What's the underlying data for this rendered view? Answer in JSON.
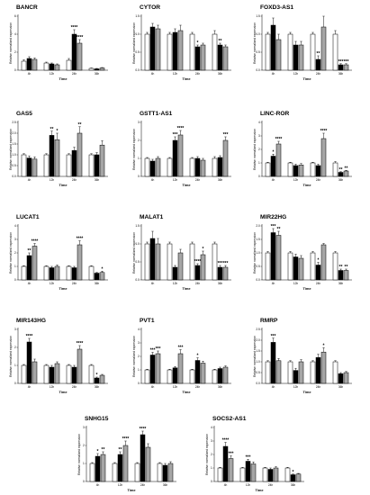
{
  "figure": {
    "groups": [
      "4h",
      "12h",
      "24h",
      "36h"
    ],
    "ylabel": "Relative normalized expression",
    "xlabel": "Time",
    "bar_colors": [
      "#ffffff",
      "#000000",
      "#a6a6a6"
    ]
  },
  "chart_data": [
    {
      "type": "bar",
      "title": "BANCR",
      "categories": [
        "4h",
        "12h",
        "24h",
        "36h"
      ],
      "ylim": [
        0,
        6
      ],
      "yticks": [
        0,
        2,
        4,
        6
      ],
      "series": [
        {
          "values": [
            1.0,
            0.8,
            1.1,
            0.2
          ]
        },
        {
          "values": [
            1.3,
            0.7,
            4.0,
            0.15
          ]
        },
        {
          "values": [
            1.2,
            0.6,
            3.0,
            0.25
          ]
        }
      ],
      "errors": [
        [
          0.15,
          0.1,
          0.2,
          0.05
        ],
        [
          0.2,
          0.1,
          0.5,
          0.05
        ],
        [
          0.15,
          0.1,
          0.4,
          0.05
        ]
      ],
      "annotations": [
        [
          "",
          "",
          "",
          ""
        ],
        [
          "",
          "",
          "****",
          ""
        ],
        [
          "",
          "",
          "****",
          ""
        ]
      ]
    },
    {
      "type": "bar",
      "title": "CYTOR",
      "categories": [
        "4h",
        "12h",
        "24h",
        "36h"
      ],
      "ylim": [
        0,
        1.5
      ],
      "yticks": [
        0.0,
        0.5,
        1.0,
        1.5
      ],
      "series": [
        {
          "values": [
            1.0,
            1.0,
            1.0,
            1.0
          ]
        },
        {
          "values": [
            1.2,
            1.05,
            0.65,
            0.7
          ]
        },
        {
          "values": [
            1.15,
            1.1,
            0.7,
            0.65
          ]
        }
      ],
      "errors": [
        [
          0.05,
          0.05,
          0.05,
          0.1
        ],
        [
          0.1,
          0.1,
          0.05,
          0.05
        ],
        [
          0.1,
          0.15,
          0.05,
          0.05
        ]
      ],
      "annotations": [
        [
          "",
          "",
          "",
          ""
        ],
        [
          "",
          "",
          "*",
          "**"
        ],
        [
          "",
          "",
          "",
          ""
        ]
      ]
    },
    {
      "type": "bar",
      "title": "FOXD3-AS1",
      "categories": [
        "4h",
        "12h",
        "24h",
        "36h"
      ],
      "ylim": [
        0,
        1.5
      ],
      "yticks": [
        0.0,
        0.5,
        1.0,
        1.5
      ],
      "series": [
        {
          "values": [
            1.0,
            1.0,
            1.0,
            1.0
          ]
        },
        {
          "values": [
            1.25,
            0.7,
            0.3,
            0.15
          ]
        },
        {
          "values": [
            0.85,
            0.7,
            1.2,
            0.15
          ]
        }
      ],
      "errors": [
        [
          0.05,
          0.05,
          0.05,
          0.1
        ],
        [
          0.2,
          0.1,
          0.1,
          0.03
        ],
        [
          0.15,
          0.1,
          0.3,
          0.03
        ]
      ],
      "annotations": [
        [
          "",
          "",
          "",
          ""
        ],
        [
          "",
          "",
          "**",
          "***"
        ],
        [
          "",
          "",
          "",
          "***"
        ]
      ]
    },
    {
      "type": "bar",
      "title": "GAS5",
      "categories": [
        "4h",
        "12h",
        "24h",
        "36h"
      ],
      "ylim": [
        0,
        2.5
      ],
      "yticks": [
        0.0,
        0.5,
        1.0,
        1.5,
        2.0,
        2.5
      ],
      "series": [
        {
          "values": [
            1.0,
            1.0,
            1.0,
            1.0
          ]
        },
        {
          "values": [
            0.85,
            1.9,
            1.2,
            1.0
          ]
        },
        {
          "values": [
            0.8,
            1.7,
            2.0,
            1.45
          ]
        }
      ],
      "errors": [
        [
          0.05,
          0.05,
          0.05,
          0.05
        ],
        [
          0.1,
          0.2,
          0.15,
          0.1
        ],
        [
          0.1,
          0.3,
          0.3,
          0.2
        ]
      ],
      "annotations": [
        [
          "",
          "",
          "",
          ""
        ],
        [
          "",
          "**",
          "",
          ""
        ],
        [
          "",
          "*",
          "**",
          ""
        ]
      ]
    },
    {
      "type": "bar",
      "title": "GSTT1-AS1",
      "categories": [
        "4h",
        "12h",
        "24h",
        "36h"
      ],
      "ylim": [
        0,
        3
      ],
      "yticks": [
        0,
        1,
        2,
        3
      ],
      "series": [
        {
          "values": [
            1.0,
            1.0,
            1.0,
            1.0
          ]
        },
        {
          "values": [
            0.85,
            2.0,
            1.0,
            1.05
          ]
        },
        {
          "values": [
            1.0,
            2.3,
            0.9,
            2.0
          ]
        }
      ],
      "errors": [
        [
          0.05,
          0.05,
          0.05,
          0.1
        ],
        [
          0.1,
          0.2,
          0.1,
          0.1
        ],
        [
          0.1,
          0.25,
          0.1,
          0.2
        ]
      ],
      "annotations": [
        [
          "",
          "",
          "",
          ""
        ],
        [
          "",
          "***",
          "",
          " "
        ],
        [
          "",
          "****",
          "",
          "***"
        ]
      ]
    },
    {
      "type": "bar",
      "title": "LINC-ROR",
      "categories": [
        "4h",
        "12h",
        "24h",
        "36h"
      ],
      "ylim": [
        0,
        4
      ],
      "yticks": [
        0,
        1,
        2,
        3,
        4
      ],
      "series": [
        {
          "values": [
            1.0,
            1.0,
            1.0,
            1.0
          ]
        },
        {
          "values": [
            1.5,
            0.8,
            0.8,
            0.3
          ]
        },
        {
          "values": [
            2.4,
            0.85,
            2.8,
            0.4
          ]
        }
      ],
      "errors": [
        [
          0.05,
          0.05,
          0.05,
          0.1
        ],
        [
          0.15,
          0.1,
          0.1,
          0.05
        ],
        [
          0.2,
          0.1,
          0.4,
          0.05
        ]
      ],
      "annotations": [
        [
          "",
          "",
          "",
          ""
        ],
        [
          "*",
          "",
          "",
          "**"
        ],
        [
          "****",
          "",
          "****",
          "**"
        ]
      ]
    },
    {
      "type": "bar",
      "title": "LUCAT1",
      "categories": [
        "4h",
        "12h",
        "24h",
        "36h"
      ],
      "ylim": [
        0,
        4
      ],
      "yticks": [
        0,
        1,
        2,
        3,
        4
      ],
      "series": [
        {
          "values": [
            1.0,
            1.0,
            1.0,
            1.0
          ]
        },
        {
          "values": [
            1.8,
            0.9,
            0.9,
            0.5
          ]
        },
        {
          "values": [
            2.5,
            1.0,
            2.6,
            0.55
          ]
        }
      ],
      "errors": [
        [
          0.05,
          0.05,
          0.05,
          0.05
        ],
        [
          0.2,
          0.1,
          0.1,
          0.05
        ],
        [
          0.2,
          0.1,
          0.3,
          0.1
        ]
      ],
      "annotations": [
        [
          "",
          "",
          "",
          ""
        ],
        [
          "**",
          "",
          "",
          ""
        ],
        [
          "****",
          "",
          "****",
          "*"
        ]
      ]
    },
    {
      "type": "bar",
      "title": "MALAT1",
      "categories": [
        "4h",
        "12h",
        "24h",
        "36h"
      ],
      "ylim": [
        0,
        1.5
      ],
      "yticks": [
        0.0,
        0.5,
        1.0,
        1.5
      ],
      "series": [
        {
          "values": [
            1.0,
            1.0,
            1.0,
            1.0
          ]
        },
        {
          "values": [
            1.15,
            0.35,
            0.4,
            0.35
          ]
        },
        {
          "values": [
            1.0,
            0.75,
            0.7,
            0.35
          ]
        }
      ],
      "errors": [
        [
          0.05,
          0.05,
          0.05,
          0.05
        ],
        [
          0.2,
          0.05,
          0.05,
          0.05
        ],
        [
          0.15,
          0.1,
          0.1,
          0.05
        ]
      ],
      "annotations": [
        [
          "",
          "",
          "",
          ""
        ],
        [
          "",
          "",
          "****",
          "***"
        ],
        [
          "",
          "",
          "*",
          "***"
        ]
      ]
    },
    {
      "type": "bar",
      "title": "MIR22HG",
      "categories": [
        "4h",
        "12h",
        "24h",
        "36h"
      ],
      "ylim": [
        0,
        2
      ],
      "yticks": [
        0.0,
        0.5,
        1.0,
        1.5,
        2.0
      ],
      "series": [
        {
          "values": [
            1.0,
            1.0,
            1.0,
            1.0
          ]
        },
        {
          "values": [
            1.75,
            0.85,
            0.55,
            0.35
          ]
        },
        {
          "values": [
            1.65,
            0.8,
            1.3,
            0.35
          ]
        }
      ],
      "errors": [
        [
          0.05,
          0.05,
          0.05,
          0.05
        ],
        [
          0.15,
          0.1,
          0.1,
          0.05
        ],
        [
          0.15,
          0.1,
          0.05,
          0.05
        ]
      ],
      "annotations": [
        [
          "",
          "",
          "",
          ""
        ],
        [
          "***",
          "",
          "*",
          "**"
        ],
        [
          "**",
          "",
          "",
          "**"
        ]
      ]
    },
    {
      "type": "bar",
      "title": "MIR143HG",
      "categories": [
        "4h",
        "12h",
        "24h",
        "36h"
      ],
      "ylim": [
        0,
        3
      ],
      "yticks": [
        0,
        1,
        2,
        3
      ],
      "series": [
        {
          "values": [
            1.0,
            1.0,
            1.0,
            1.0
          ]
        },
        {
          "values": [
            2.3,
            0.9,
            0.9,
            0.3
          ]
        },
        {
          "values": [
            1.2,
            1.1,
            1.9,
            0.45
          ]
        }
      ],
      "errors": [
        [
          0.05,
          0.05,
          0.05,
          0.05
        ],
        [
          0.2,
          0.1,
          0.1,
          0.05
        ],
        [
          0.15,
          0.1,
          0.2,
          0.05
        ]
      ],
      "annotations": [
        [
          "",
          "",
          "",
          ""
        ],
        [
          "****",
          "",
          "",
          "*"
        ],
        [
          "",
          "",
          "****",
          ""
        ]
      ]
    },
    {
      "type": "bar",
      "title": "PVT1",
      "categories": [
        "4h",
        "12h",
        "24h",
        "36h"
      ],
      "ylim": [
        0,
        4
      ],
      "yticks": [
        0,
        1,
        2,
        3,
        4
      ],
      "series": [
        {
          "values": [
            1.0,
            1.0,
            1.0,
            1.0
          ]
        },
        {
          "values": [
            2.1,
            1.15,
            1.7,
            1.1
          ]
        },
        {
          "values": [
            2.2,
            2.2,
            1.5,
            1.2
          ]
        }
      ],
      "errors": [
        [
          0.05,
          0.05,
          0.05,
          0.05
        ],
        [
          0.2,
          0.1,
          0.2,
          0.1
        ],
        [
          0.2,
          0.3,
          0.15,
          0.1
        ]
      ],
      "annotations": [
        [
          "",
          "",
          "",
          ""
        ],
        [
          "***",
          "",
          "*",
          ""
        ],
        [
          "***",
          "***",
          "",
          ""
        ]
      ]
    },
    {
      "type": "bar",
      "title": "RMRP",
      "categories": [
        "4h",
        "12h",
        "24h",
        "36h"
      ],
      "ylim": [
        0,
        2.5
      ],
      "yticks": [
        0.0,
        0.5,
        1.0,
        1.5,
        2.0,
        2.5
      ],
      "series": [
        {
          "values": [
            1.0,
            1.0,
            1.0,
            1.0
          ]
        },
        {
          "values": [
            1.9,
            0.6,
            1.2,
            0.45
          ]
        },
        {
          "values": [
            1.05,
            1.0,
            1.45,
            0.5
          ]
        }
      ],
      "errors": [
        [
          0.05,
          0.05,
          0.05,
          0.05
        ],
        [
          0.2,
          0.1,
          0.15,
          0.05
        ],
        [
          0.1,
          0.1,
          0.2,
          0.05
        ]
      ],
      "annotations": [
        [
          "",
          "",
          "",
          ""
        ],
        [
          "***",
          "",
          "",
          ""
        ],
        [
          "",
          "",
          "*",
          ""
        ]
      ]
    },
    {
      "type": "bar",
      "title": "SNHG15",
      "categories": [
        "4h",
        "12h",
        "24h",
        "36h"
      ],
      "ylim": [
        0,
        3
      ],
      "yticks": [
        0,
        1,
        2,
        3
      ],
      "series": [
        {
          "values": [
            1.0,
            1.0,
            1.0,
            1.0
          ]
        },
        {
          "values": [
            1.4,
            1.5,
            2.6,
            0.9
          ]
        },
        {
          "values": [
            1.5,
            2.0,
            1.9,
            1.0
          ]
        }
      ],
      "errors": [
        [
          0.05,
          0.05,
          0.05,
          0.05
        ],
        [
          0.15,
          0.15,
          0.2,
          0.1
        ],
        [
          0.15,
          0.25,
          0.2,
          0.1
        ]
      ],
      "annotations": [
        [
          "",
          "",
          "",
          ""
        ],
        [
          "*",
          "**",
          "****",
          ""
        ],
        [
          "**",
          "****",
          "",
          ""
        ]
      ]
    },
    {
      "type": "bar",
      "title": "SOCS2-AS1",
      "categories": [
        "4h",
        "12h",
        "24h",
        "36h"
      ],
      "ylim": [
        0,
        4
      ],
      "yticks": [
        0,
        1,
        2,
        3,
        4
      ],
      "series": [
        {
          "values": [
            1.0,
            1.0,
            1.0,
            1.0
          ]
        },
        {
          "values": [
            2.6,
            1.5,
            0.9,
            0.5
          ]
        },
        {
          "values": [
            1.7,
            1.3,
            1.0,
            0.55
          ]
        }
      ],
      "errors": [
        [
          0.05,
          0.05,
          0.05,
          0.05
        ],
        [
          0.3,
          0.15,
          0.1,
          0.05
        ],
        [
          0.2,
          0.15,
          0.1,
          0.05
        ]
      ],
      "annotations": [
        [
          "",
          "",
          "",
          ""
        ],
        [
          "****",
          "***",
          "",
          "*"
        ],
        [
          "***",
          "",
          "",
          ""
        ]
      ]
    }
  ]
}
